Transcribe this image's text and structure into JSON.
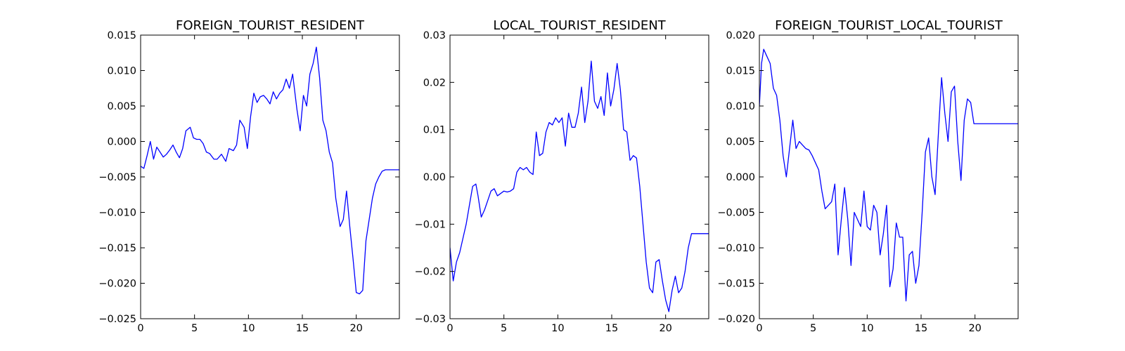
{
  "chart_data": [
    {
      "type": "line",
      "title": "FOREIGN_TOURIST_RESIDENT",
      "xlabel": "",
      "ylabel": "",
      "xlim": [
        0,
        24
      ],
      "ylim": [
        -0.025,
        0.015
      ],
      "xticks": [
        0,
        5,
        10,
        15,
        20
      ],
      "yticks": [
        -0.025,
        -0.02,
        -0.015,
        -0.01,
        -0.005,
        0.0,
        0.005,
        0.01,
        0.015
      ],
      "xtick_labels": [
        "0",
        "5",
        "10",
        "15",
        "20"
      ],
      "ytick_labels": [
        "−0.025",
        "−0.020",
        "−0.015",
        "−0.010",
        "−0.005",
        "0.000",
        "0.005",
        "0.010",
        "0.015"
      ],
      "grid": false,
      "color": "#0000ff",
      "x": [
        0,
        0.3,
        0.6,
        0.9,
        1.2,
        1.5,
        1.8,
        2.1,
        2.4,
        2.7,
        3.0,
        3.3,
        3.6,
        3.9,
        4.2,
        4.6,
        4.9,
        5.2,
        5.5,
        5.8,
        6.1,
        6.4,
        6.8,
        7.1,
        7.5,
        7.9,
        8.2,
        8.6,
        8.9,
        9.2,
        9.6,
        9.9,
        10.2,
        10.5,
        10.8,
        11.1,
        11.4,
        11.7,
        12.0,
        12.3,
        12.6,
        12.9,
        13.2,
        13.5,
        13.8,
        14.1,
        14.5,
        14.8,
        15.1,
        15.4,
        15.7,
        16.0,
        16.3,
        16.6,
        16.9,
        17.2,
        17.5,
        17.8,
        18.1,
        18.5,
        18.8,
        19.1,
        19.4,
        19.7,
        20.0,
        20.3,
        20.6,
        20.9,
        21.2,
        21.5,
        21.8,
        22.1,
        22.4,
        22.7,
        22.9,
        23.1,
        23.4,
        23.7,
        24.0
      ],
      "y": [
        -0.0035,
        -0.0038,
        -0.002,
        0.0,
        -0.0025,
        -0.0008,
        -0.0015,
        -0.0022,
        -0.0018,
        -0.0012,
        -0.0005,
        -0.0015,
        -0.0023,
        -0.001,
        0.0015,
        0.002,
        0.0005,
        0.0003,
        0.0003,
        -0.0003,
        -0.0015,
        -0.0017,
        -0.0025,
        -0.0025,
        -0.0018,
        -0.0028,
        -0.001,
        -0.0013,
        -0.0005,
        0.003,
        0.002,
        -0.001,
        0.0035,
        0.0068,
        0.0055,
        0.0063,
        0.0065,
        0.006,
        0.0053,
        0.007,
        0.006,
        0.0068,
        0.0073,
        0.0088,
        0.0075,
        0.0095,
        0.0045,
        0.0015,
        0.0065,
        0.005,
        0.0095,
        0.011,
        0.0133,
        0.009,
        0.003,
        0.0015,
        -0.0015,
        -0.003,
        -0.008,
        -0.012,
        -0.011,
        -0.007,
        -0.012,
        -0.0165,
        -0.0213,
        -0.0215,
        -0.021,
        -0.014,
        -0.011,
        -0.008,
        -0.006,
        -0.005,
        -0.0042,
        -0.004,
        -0.004,
        -0.004,
        -0.004,
        -0.004,
        -0.004
      ]
    },
    {
      "type": "line",
      "title": "LOCAL_TOURIST_RESIDENT",
      "xlabel": "",
      "ylabel": "",
      "xlim": [
        0,
        24
      ],
      "ylim": [
        -0.03,
        0.03
      ],
      "xticks": [
        0,
        5,
        10,
        15,
        20
      ],
      "yticks": [
        -0.03,
        -0.02,
        -0.01,
        0.0,
        0.01,
        0.02,
        0.03
      ],
      "xtick_labels": [
        "0",
        "5",
        "10",
        "15",
        "20"
      ],
      "ytick_labels": [
        "−0.03",
        "−0.02",
        "−0.01",
        "0.00",
        "0.01",
        "0.02",
        "0.03"
      ],
      "grid": false,
      "color": "#0000ff",
      "x": [
        0,
        0.3,
        0.6,
        0.9,
        1.2,
        1.5,
        1.8,
        2.1,
        2.4,
        2.6,
        2.9,
        3.2,
        3.5,
        3.8,
        4.1,
        4.4,
        4.7,
        5.0,
        5.3,
        5.6,
        5.9,
        6.2,
        6.5,
        6.8,
        7.1,
        7.4,
        7.7,
        8.0,
        8.3,
        8.6,
        8.9,
        9.2,
        9.5,
        9.8,
        10.1,
        10.4,
        10.7,
        11.0,
        11.3,
        11.6,
        11.9,
        12.2,
        12.5,
        12.8,
        13.1,
        13.4,
        13.7,
        14.0,
        14.3,
        14.6,
        14.9,
        15.2,
        15.5,
        15.8,
        16.1,
        16.4,
        16.7,
        17.0,
        17.3,
        17.6,
        17.9,
        18.2,
        18.5,
        18.8,
        19.1,
        19.4,
        19.7,
        20.0,
        20.3,
        20.6,
        20.9,
        21.2,
        21.5,
        21.8,
        22.1,
        22.4,
        22.7,
        23.0,
        23.3,
        23.6,
        23.9,
        24.0
      ],
      "y": [
        -0.015,
        -0.022,
        -0.018,
        -0.016,
        -0.013,
        -0.01,
        -0.006,
        -0.002,
        -0.0015,
        -0.004,
        -0.0085,
        -0.007,
        -0.005,
        -0.003,
        -0.0025,
        -0.004,
        -0.0035,
        -0.003,
        -0.0032,
        -0.003,
        -0.0025,
        0.001,
        0.002,
        0.0015,
        0.002,
        0.001,
        0.0005,
        0.0095,
        0.0045,
        0.005,
        0.0095,
        0.0115,
        0.011,
        0.0125,
        0.0115,
        0.0125,
        0.0065,
        0.0135,
        0.0105,
        0.0105,
        0.0135,
        0.019,
        0.0115,
        0.016,
        0.0245,
        0.016,
        0.0145,
        0.017,
        0.013,
        0.022,
        0.015,
        0.0185,
        0.024,
        0.0185,
        0.01,
        0.0095,
        0.0035,
        0.0045,
        0.004,
        -0.002,
        -0.01,
        -0.018,
        -0.0235,
        -0.0245,
        -0.018,
        -0.0175,
        -0.022,
        -0.026,
        -0.0285,
        -0.024,
        -0.021,
        -0.0245,
        -0.0235,
        -0.02,
        -0.015,
        -0.012,
        -0.012,
        -0.012,
        -0.012,
        -0.012,
        -0.012,
        -0.012
      ]
    },
    {
      "type": "line",
      "title": "FOREIGN_TOURIST_LOCAL_TOURIST",
      "xlabel": "",
      "ylabel": "",
      "xlim": [
        0,
        24
      ],
      "ylim": [
        -0.02,
        0.02
      ],
      "xticks": [
        0,
        5,
        10,
        15,
        20
      ],
      "yticks": [
        -0.02,
        -0.015,
        -0.01,
        -0.005,
        0.0,
        0.005,
        0.01,
        0.015,
        0.02
      ],
      "xtick_labels": [
        "0",
        "5",
        "10",
        "15",
        "20"
      ],
      "ytick_labels": [
        "−0.020",
        "−0.015",
        "−0.010",
        "−0.005",
        "0.000",
        "0.005",
        "0.010",
        "0.015",
        "0.020"
      ],
      "grid": false,
      "color": "#0000ff",
      "x": [
        0,
        0.2,
        0.4,
        0.7,
        1.0,
        1.3,
        1.6,
        1.9,
        2.2,
        2.5,
        2.8,
        3.1,
        3.4,
        3.7,
        4.0,
        4.3,
        4.6,
        4.9,
        5.2,
        5.5,
        5.8,
        6.1,
        6.4,
        6.7,
        7.0,
        7.3,
        7.6,
        7.9,
        8.2,
        8.5,
        8.8,
        9.1,
        9.4,
        9.7,
        10.0,
        10.3,
        10.6,
        10.9,
        11.2,
        11.5,
        11.8,
        12.1,
        12.4,
        12.7,
        13.0,
        13.3,
        13.6,
        13.9,
        14.2,
        14.5,
        14.8,
        15.1,
        15.4,
        15.7,
        16.0,
        16.3,
        16.6,
        16.9,
        17.2,
        17.5,
        17.8,
        18.1,
        18.4,
        18.7,
        19.0,
        19.3,
        19.6,
        19.9,
        20.2,
        20.5,
        20.8,
        21.1,
        21.4,
        21.7,
        22.0,
        22.3,
        22.6,
        22.9,
        23.2,
        23.5,
        23.8,
        24.0
      ],
      "y": [
        0.01,
        0.016,
        0.018,
        0.017,
        0.016,
        0.0125,
        0.0115,
        0.008,
        0.003,
        0.0,
        0.004,
        0.008,
        0.004,
        0.005,
        0.0045,
        0.004,
        0.0038,
        0.003,
        0.002,
        0.001,
        -0.002,
        -0.0045,
        -0.004,
        -0.0035,
        -0.001,
        -0.011,
        -0.006,
        -0.0015,
        -0.006,
        -0.0125,
        -0.005,
        -0.006,
        -0.007,
        -0.002,
        -0.007,
        -0.0075,
        -0.004,
        -0.005,
        -0.011,
        -0.008,
        -0.004,
        -0.0155,
        -0.013,
        -0.0065,
        -0.0085,
        -0.0085,
        -0.0175,
        -0.011,
        -0.0105,
        -0.015,
        -0.0125,
        -0.005,
        0.0035,
        0.0055,
        0.0,
        -0.0025,
        0.006,
        0.014,
        0.009,
        0.005,
        0.012,
        0.0128,
        0.005,
        -0.0005,
        0.008,
        0.011,
        0.0105,
        0.0075,
        0.0075,
        0.0075,
        0.0075,
        0.0075,
        0.0075,
        0.0075,
        0.0075,
        0.0075,
        0.0075,
        0.0075,
        0.0075,
        0.0075,
        0.0075,
        0.0075
      ]
    }
  ]
}
